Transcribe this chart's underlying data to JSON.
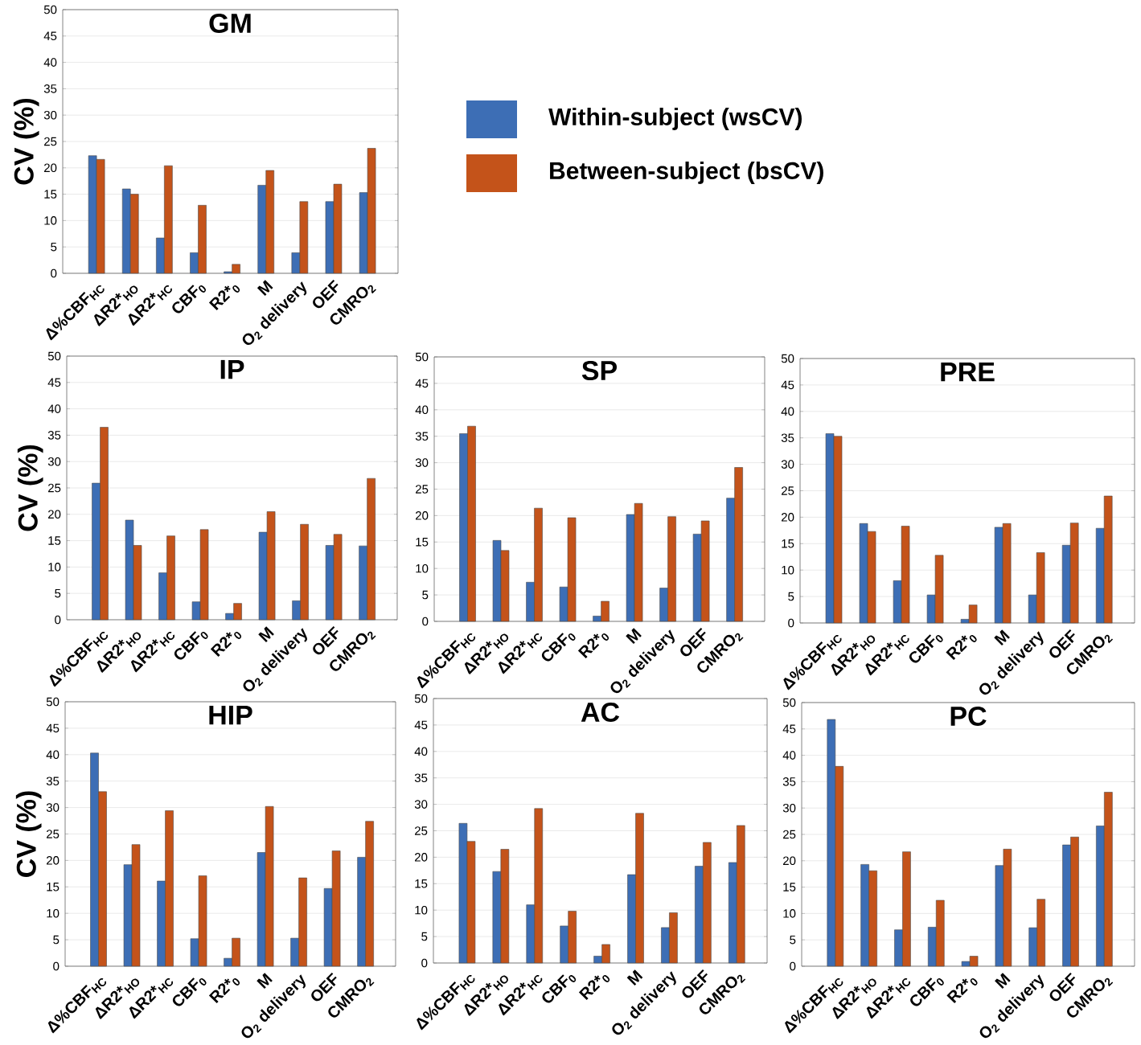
{
  "chart_data": [
    {
      "type": "bar",
      "title": "GM",
      "ylabel": "CV (%)",
      "categories": [
        "Δ%CBF$_{HC}$",
        "ΔR2*$_{HO}$",
        "ΔR2*$_{HC}$",
        "CBF$_{0}$",
        "R2*$_{0}$",
        "M",
        "O$_{2}$ delivery",
        "OEF",
        "CMRO$_{2}$"
      ],
      "series": [
        {
          "name": "Within-subject (wsCV)",
          "color": "#3d6eb5",
          "values": [
            22.3,
            16,
            6.7,
            3.9,
            0.3,
            16.7,
            3.9,
            13.6,
            15.3
          ]
        },
        {
          "name": "Between-subject (bsCV)",
          "color": "#c4531a",
          "values": [
            21.6,
            15,
            20.4,
            12.9,
            1.7,
            19.5,
            13.6,
            16.9,
            23.7
          ]
        }
      ],
      "ylim": [
        0,
        50
      ],
      "yticks": [
        0,
        5,
        10,
        15,
        20,
        25,
        30,
        35,
        40,
        45,
        50
      ],
      "grid": "y",
      "legend": "right"
    },
    {
      "type": "bar",
      "title": "IP",
      "ylabel": "CV (%)",
      "categories": [
        "Δ%CBF$_{HC}$",
        "ΔR2*$_{HO}$",
        "ΔR2*$_{HC}$",
        "CBF$_{0}$",
        "R2*$_{0}$",
        "M",
        "O$_{2}$ delivery",
        "OEF",
        "CMRO$_{2}$"
      ],
      "series": [
        {
          "color": "#3d6eb5",
          "values": [
            25.9,
            18.9,
            8.9,
            3.4,
            1.2,
            16.6,
            3.6,
            14.1,
            14
          ]
        },
        {
          "color": "#c4531a",
          "values": [
            36.5,
            14.1,
            15.9,
            17.1,
            3.1,
            20.5,
            18.1,
            16.2,
            26.8
          ]
        }
      ],
      "ylim": [
        0,
        50
      ],
      "yticks": [
        0,
        5,
        10,
        15,
        20,
        25,
        30,
        35,
        40,
        45,
        50
      ],
      "grid": "y"
    },
    {
      "type": "bar",
      "title": "SP",
      "categories": [
        "Δ%CBF$_{HC}$",
        "ΔR2*$_{HO}$",
        "ΔR2*$_{HC}$",
        "CBF$_{0}$",
        "R2*$_{0}$",
        "M",
        "O$_{2}$ delivery",
        "OEF",
        "CMRO$_{2}$"
      ],
      "series": [
        {
          "color": "#3d6eb5",
          "values": [
            35.5,
            15.3,
            7.4,
            6.5,
            1,
            20.2,
            6.3,
            16.5,
            23.3
          ]
        },
        {
          "color": "#c4531a",
          "values": [
            36.9,
            13.4,
            21.4,
            19.6,
            3.8,
            22.3,
            19.8,
            19,
            29.1
          ]
        }
      ],
      "ylim": [
        0,
        50
      ],
      "yticks": [
        0,
        5,
        10,
        15,
        20,
        25,
        30,
        35,
        40,
        45,
        50
      ],
      "grid": "y"
    },
    {
      "type": "bar",
      "title": "PRE",
      "categories": [
        "Δ%CBF$_{HC}$",
        "ΔR2*$_{HO}$",
        "ΔR2*$_{HC}$",
        "CBF$_{0}$",
        "R2*$_{0}$",
        "M",
        "O$_{2}$ delivery",
        "OEF",
        "CMRO$_{2}$"
      ],
      "series": [
        {
          "color": "#3d6eb5",
          "values": [
            35.8,
            18.8,
            8,
            5.3,
            0.7,
            18.1,
            5.3,
            14.7,
            17.9
          ]
        },
        {
          "color": "#c4531a",
          "values": [
            35.3,
            17.3,
            18.3,
            12.8,
            3.4,
            18.8,
            13.3,
            18.9,
            24
          ]
        }
      ],
      "ylim": [
        0,
        50
      ],
      "yticks": [
        0,
        5,
        10,
        15,
        20,
        25,
        30,
        35,
        40,
        45,
        50
      ],
      "grid": "y"
    },
    {
      "type": "bar",
      "title": "HIP",
      "ylabel": "CV (%)",
      "categories": [
        "Δ%CBF$_{HC}$",
        "ΔR2*$_{HO}$",
        "ΔR2*$_{HC}$",
        "CBF$_{0}$",
        "R2*$_{0}$",
        "M",
        "O$_{2}$ delivery",
        "OEF",
        "CMRO$_{2}$"
      ],
      "series": [
        {
          "color": "#3d6eb5",
          "values": [
            40.3,
            19.2,
            16.1,
            5.2,
            1.5,
            21.5,
            5.3,
            14.7,
            20.6
          ]
        },
        {
          "color": "#c4531a",
          "values": [
            33,
            23,
            29.4,
            17.1,
            5.3,
            30.2,
            16.7,
            21.8,
            27.4
          ]
        }
      ],
      "ylim": [
        0,
        50
      ],
      "yticks": [
        0,
        5,
        10,
        15,
        20,
        25,
        30,
        35,
        40,
        45,
        50
      ],
      "grid": "y"
    },
    {
      "type": "bar",
      "title": "AC",
      "categories": [
        "Δ%CBF$_{HC}$",
        "ΔR2*$_{HO}$",
        "ΔR2*$_{HC}$",
        "CBF$_{0}$",
        "R2*$_{0}$",
        "M",
        "O$_{2}$ delivery",
        "OEF",
        "CMRO$_{2}$"
      ],
      "series": [
        {
          "color": "#3d6eb5",
          "values": [
            26.4,
            17.3,
            11,
            7,
            1.3,
            16.7,
            6.7,
            18.3,
            19
          ]
        },
        {
          "color": "#c4531a",
          "values": [
            23,
            21.5,
            29.2,
            9.8,
            3.5,
            28.3,
            9.5,
            22.8,
            26
          ]
        }
      ],
      "ylim": [
        0,
        50
      ],
      "yticks": [
        0,
        5,
        10,
        15,
        20,
        25,
        30,
        35,
        40,
        45,
        50
      ],
      "grid": "y"
    },
    {
      "type": "bar",
      "title": "PC",
      "categories": [
        "Δ%CBF$_{HC}$",
        "ΔR2*$_{HO}$",
        "ΔR2*$_{HC}$",
        "CBF$_{0}$",
        "R2*$_{0}$",
        "M",
        "O$_{2}$ delivery",
        "OEF",
        "CMRO$_{2}$"
      ],
      "series": [
        {
          "color": "#3d6eb5",
          "values": [
            46.8,
            19.3,
            6.9,
            7.4,
            0.9,
            19.1,
            7.3,
            23,
            26.6
          ]
        },
        {
          "color": "#c4531a",
          "values": [
            37.9,
            18.1,
            21.7,
            12.5,
            1.9,
            22.2,
            12.7,
            24.5,
            33
          ]
        }
      ],
      "ylim": [
        0,
        50
      ],
      "yticks": [
        0,
        5,
        10,
        15,
        20,
        25,
        30,
        35,
        40,
        45,
        50
      ],
      "grid": "y"
    }
  ]
}
